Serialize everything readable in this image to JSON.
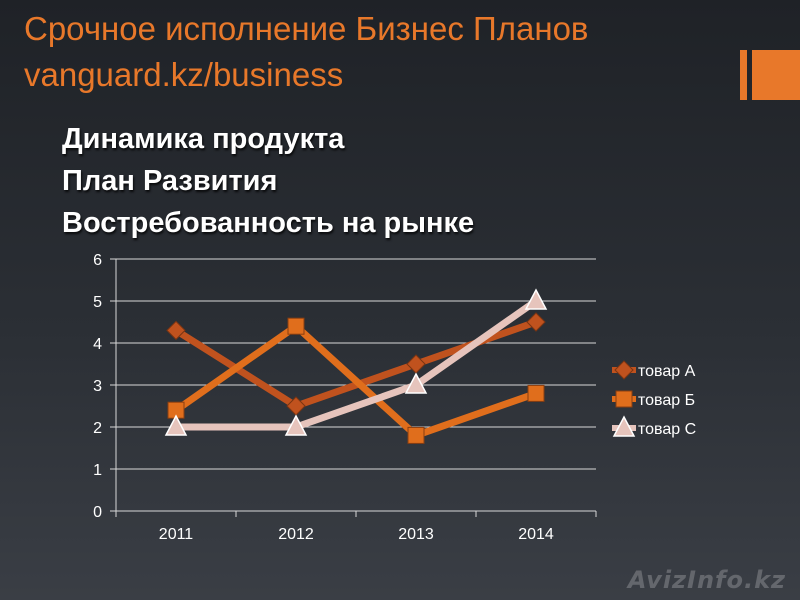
{
  "header": {
    "title_line1": "Срочное исполнение Бизнес Планов",
    "title_line2": "vanguard.kz/business"
  },
  "subtitles": [
    "Динамика продукта",
    "План Развития",
    "Востребованность на рынке"
  ],
  "watermark": "AvizInfo.kz",
  "colors": {
    "accent": "#e8782a",
    "series_a": "#c0521e",
    "series_b": "#e06e1c",
    "series_c": "#e6c4bc"
  },
  "chart_data": {
    "type": "line",
    "categories": [
      "2011",
      "2012",
      "2013",
      "2014"
    ],
    "series": [
      {
        "name": "товар А",
        "values": [
          4.3,
          2.5,
          3.5,
          4.5
        ],
        "marker": "diamond"
      },
      {
        "name": "товар Б",
        "values": [
          2.4,
          4.4,
          1.8,
          2.8
        ],
        "marker": "square"
      },
      {
        "name": "товар С",
        "values": [
          2,
          2,
          3,
          5
        ],
        "marker": "triangle"
      }
    ],
    "ylim": [
      0,
      6
    ],
    "yticks": [
      "0",
      "1",
      "2",
      "3",
      "4",
      "5",
      "6"
    ],
    "grid": true,
    "legend": "right"
  }
}
